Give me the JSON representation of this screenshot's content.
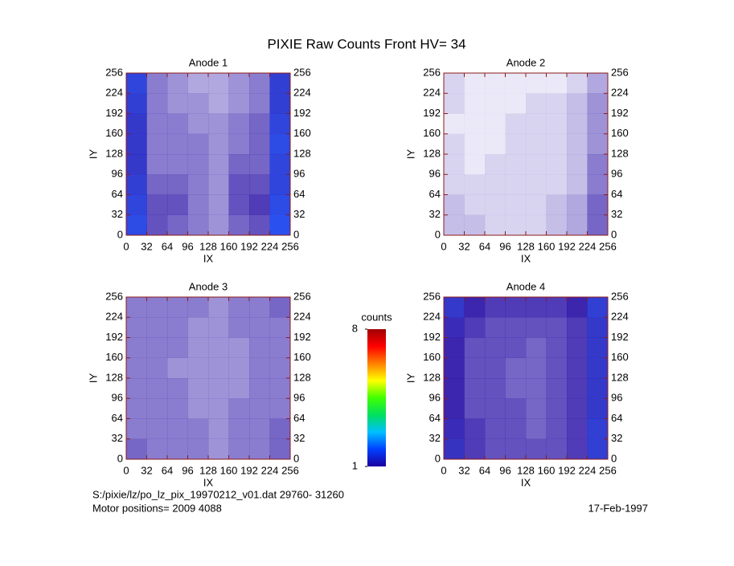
{
  "page": {
    "title": "PIXIE Raw Counts Front HV= 34",
    "footer": [
      "S:/pixie/lz/po_lz_pix_19970212_v01.dat    29760- 31260",
      "Motor positions= 2009 4088"
    ],
    "date": "17-Feb-1997"
  },
  "colorbar": {
    "label": "counts",
    "lim": [
      1,
      8
    ],
    "ticks": [
      1,
      8
    ],
    "colors": [
      "#1a00a0",
      "#0040ff",
      "#00c0ff",
      "#00e060",
      "#40ff00",
      "#ffff00",
      "#ff8000",
      "#ff0000",
      "#a00000"
    ]
  },
  "chart_data": [
    {
      "type": "heatmap",
      "title": "Anode 1",
      "xlabel": "IX",
      "ylabel": "IY",
      "xlim": [
        0,
        256
      ],
      "ylim": [
        0,
        256
      ],
      "xticks": [
        0,
        32,
        64,
        96,
        128,
        160,
        192,
        224,
        256
      ],
      "yticks": [
        0,
        32,
        64,
        96,
        128,
        160,
        192,
        224,
        256
      ],
      "values": [
        [
          1.6,
          0.8,
          0.7,
          0.6,
          0.5,
          0.7,
          0.8,
          1.7
        ],
        [
          1.5,
          0.8,
          0.8,
          0.6,
          0.5,
          0.8,
          0.9,
          1.6
        ],
        [
          1.4,
          0.7,
          0.7,
          0.6,
          0.5,
          0.8,
          0.8,
          1.5
        ],
        [
          1.3,
          0.6,
          0.6,
          0.6,
          0.5,
          0.7,
          0.7,
          1.5
        ],
        [
          1.3,
          0.6,
          0.6,
          0.6,
          0.5,
          0.6,
          0.7,
          1.6
        ],
        [
          1.3,
          0.6,
          0.6,
          0.5,
          0.5,
          0.6,
          0.7,
          1.5
        ],
        [
          1.4,
          0.6,
          0.5,
          0.5,
          0.4,
          0.5,
          0.6,
          1.4
        ],
        [
          1.5,
          0.6,
          0.5,
          0.4,
          0.4,
          0.5,
          0.6,
          1.4
        ]
      ]
    },
    {
      "type": "heatmap",
      "title": "Anode 2",
      "xlabel": "IX",
      "ylabel": "IY",
      "xlim": [
        0,
        256
      ],
      "ylim": [
        0,
        256
      ],
      "xticks": [
        0,
        32,
        64,
        96,
        128,
        160,
        192,
        224,
        256
      ],
      "yticks": [
        0,
        32,
        64,
        96,
        128,
        160,
        192,
        224,
        256
      ],
      "values": [
        [
          0.3,
          0.3,
          0.2,
          0.2,
          0.2,
          0.3,
          0.4,
          0.7
        ],
        [
          0.3,
          0.2,
          0.2,
          0.2,
          0.2,
          0.3,
          0.4,
          0.7
        ],
        [
          0.2,
          0.2,
          0.2,
          0.2,
          0.2,
          0.2,
          0.3,
          0.6
        ],
        [
          0.2,
          0.1,
          0.2,
          0.2,
          0.2,
          0.2,
          0.3,
          0.6
        ],
        [
          0.2,
          0.1,
          0.1,
          0.2,
          0.2,
          0.2,
          0.3,
          0.5
        ],
        [
          0.1,
          0.1,
          0.1,
          0.2,
          0.2,
          0.2,
          0.3,
          0.5
        ],
        [
          0.2,
          0.1,
          0.1,
          0.1,
          0.2,
          0.2,
          0.3,
          0.5
        ],
        [
          0.2,
          0.1,
          0.1,
          0.1,
          0.1,
          0.1,
          0.2,
          0.4
        ]
      ]
    },
    {
      "type": "heatmap",
      "title": "Anode 3",
      "xlabel": "IX",
      "ylabel": "IY",
      "xlim": [
        0,
        256
      ],
      "ylim": [
        0,
        256
      ],
      "xticks": [
        0,
        32,
        64,
        96,
        128,
        160,
        192,
        224,
        256
      ],
      "yticks": [
        0,
        32,
        64,
        96,
        128,
        160,
        192,
        224,
        256
      ],
      "values": [
        [
          0.7,
          0.6,
          0.6,
          0.6,
          0.5,
          0.6,
          0.6,
          0.7
        ],
        [
          0.6,
          0.6,
          0.6,
          0.6,
          0.5,
          0.6,
          0.6,
          0.7
        ],
        [
          0.6,
          0.6,
          0.6,
          0.5,
          0.5,
          0.6,
          0.6,
          0.6
        ],
        [
          0.6,
          0.6,
          0.6,
          0.5,
          0.5,
          0.5,
          0.6,
          0.6
        ],
        [
          0.6,
          0.6,
          0.5,
          0.5,
          0.5,
          0.5,
          0.6,
          0.6
        ],
        [
          0.6,
          0.6,
          0.6,
          0.5,
          0.5,
          0.5,
          0.6,
          0.6
        ],
        [
          0.6,
          0.6,
          0.6,
          0.5,
          0.5,
          0.6,
          0.6,
          0.6
        ],
        [
          0.6,
          0.6,
          0.6,
          0.6,
          0.5,
          0.6,
          0.6,
          0.7
        ]
      ]
    },
    {
      "type": "heatmap",
      "title": "Anode 4",
      "xlabel": "IX",
      "ylabel": "IY",
      "xlim": [
        0,
        256
      ],
      "ylim": [
        0,
        256
      ],
      "xticks": [
        0,
        32,
        64,
        96,
        128,
        160,
        192,
        224,
        256
      ],
      "yticks": [
        0,
        32,
        64,
        96,
        128,
        160,
        192,
        224,
        256
      ],
      "values": [
        [
          1.2,
          0.9,
          0.8,
          0.8,
          0.8,
          0.8,
          0.9,
          1.4
        ],
        [
          1.1,
          0.9,
          0.8,
          0.8,
          0.7,
          0.8,
          0.9,
          1.4
        ],
        [
          1.0,
          0.8,
          0.8,
          0.8,
          0.7,
          0.8,
          0.9,
          1.3
        ],
        [
          1.0,
          0.8,
          0.8,
          0.7,
          0.7,
          0.8,
          0.9,
          1.3
        ],
        [
          1.0,
          0.8,
          0.8,
          0.7,
          0.7,
          0.8,
          0.9,
          1.3
        ],
        [
          1.0,
          0.8,
          0.8,
          0.8,
          0.7,
          0.8,
          0.9,
          1.3
        ],
        [
          1.1,
          0.9,
          0.8,
          0.8,
          0.8,
          0.8,
          0.9,
          1.3
        ],
        [
          1.3,
          1.0,
          0.9,
          0.9,
          0.9,
          0.9,
          1.0,
          1.4
        ]
      ]
    }
  ]
}
